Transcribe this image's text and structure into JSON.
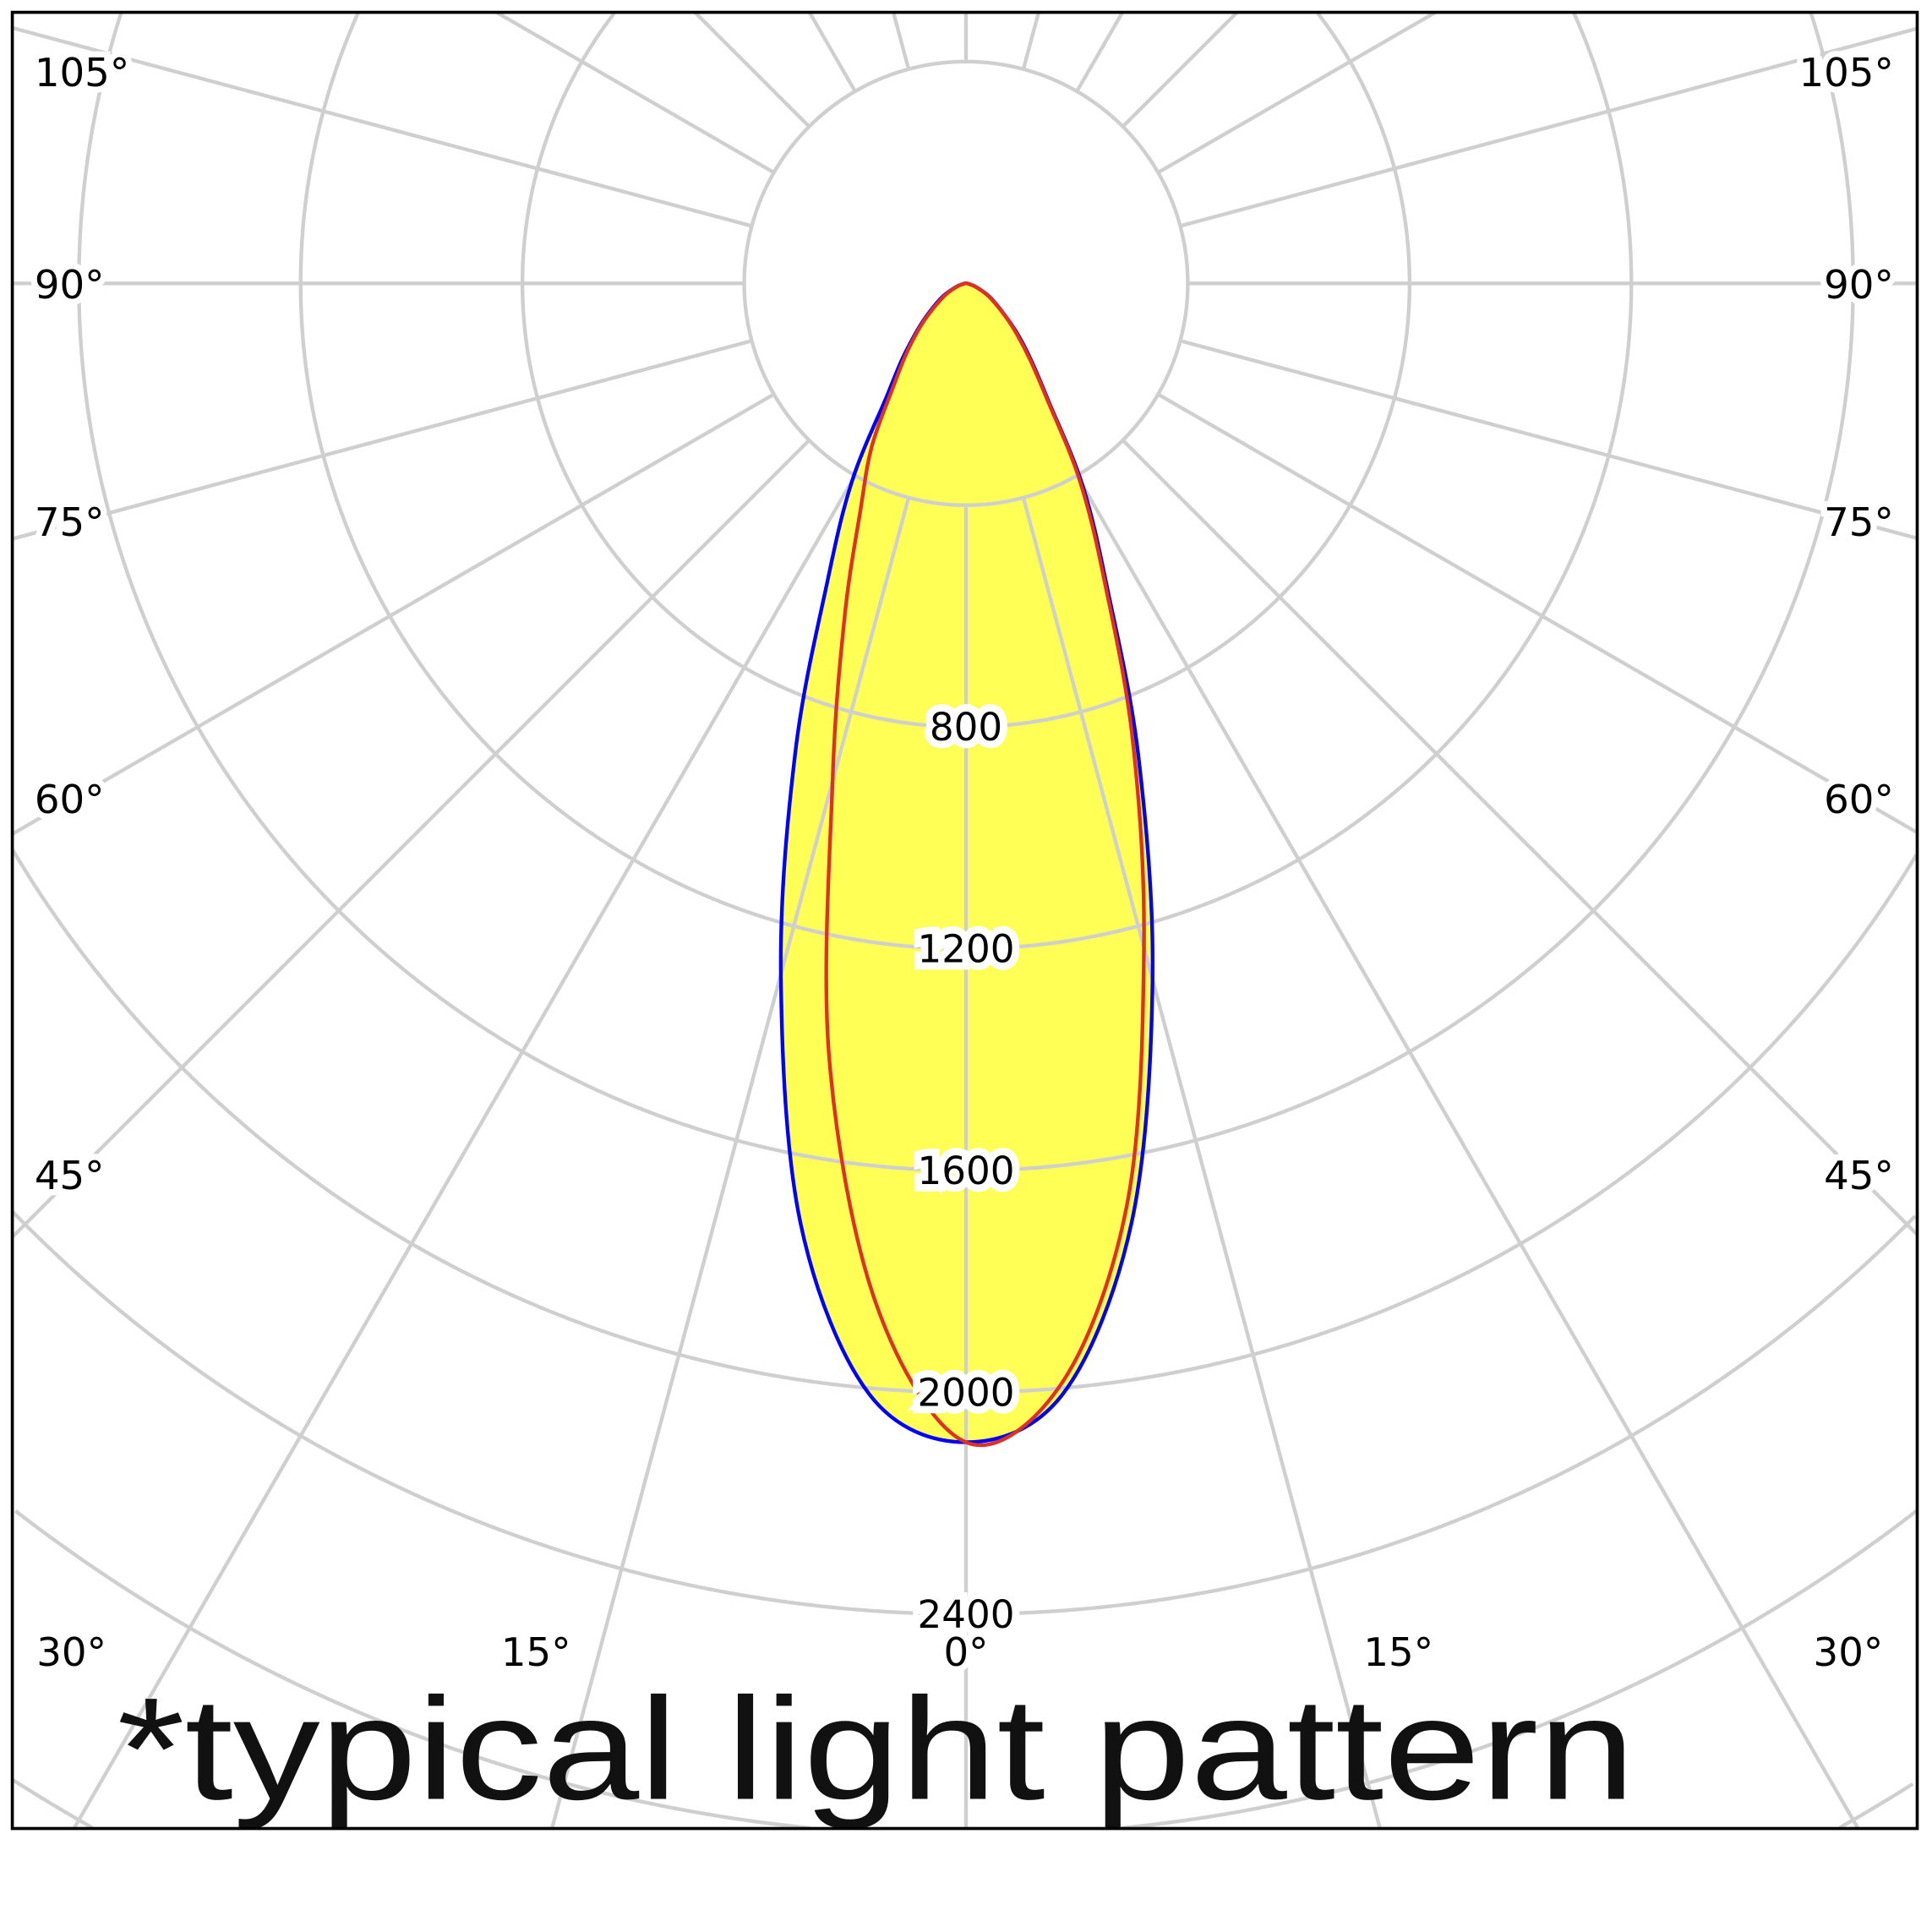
{
  "chart_data": {
    "type": "polar",
    "title": "",
    "caption": "*typical light pattern",
    "radial_ticks": [
      800,
      1200,
      1600,
      2000,
      2400
    ],
    "radial_grid_step": 400,
    "radial_max": 3200,
    "angle_grid_step_deg": 15,
    "angle_labels_left": [
      "105°",
      "90°",
      "75°",
      "60°",
      "45°"
    ],
    "angle_labels_right": [
      "105°",
      "90°",
      "75°",
      "60°",
      "45°"
    ],
    "angle_labels_bottom": [
      "30°",
      "15°",
      "0°",
      "15°",
      "30°"
    ],
    "grid": true,
    "angles_deg": [
      0,
      5,
      10,
      15,
      20,
      25,
      30,
      35,
      40,
      45,
      50,
      60,
      70,
      80,
      90
    ],
    "series": [
      {
        "color": "#0000ff",
        "filled": true,
        "fill_color": "#ffff55",
        "left": [
          2090,
          2010,
          1720,
          1290,
          900,
          590,
          410,
          250,
          180,
          130,
          95,
          50,
          20,
          5,
          0
        ],
        "right": [
          2090,
          2010,
          1720,
          1300,
          910,
          600,
          420,
          260,
          185,
          135,
          95,
          50,
          20,
          5,
          0
        ]
      },
      {
        "color": "#e03020",
        "filled": false,
        "left": [
          2090,
          1850,
          1420,
          930,
          640,
          450,
          340,
          230,
          170,
          125,
          90,
          45,
          18,
          5,
          0
        ],
        "right": [
          2090,
          1990,
          1680,
          1240,
          880,
          590,
          410,
          255,
          180,
          130,
          93,
          48,
          19,
          5,
          0
        ]
      }
    ],
    "colors": {
      "grid": "#cfcfcf",
      "frame": "#000000",
      "text": "#000000"
    }
  }
}
